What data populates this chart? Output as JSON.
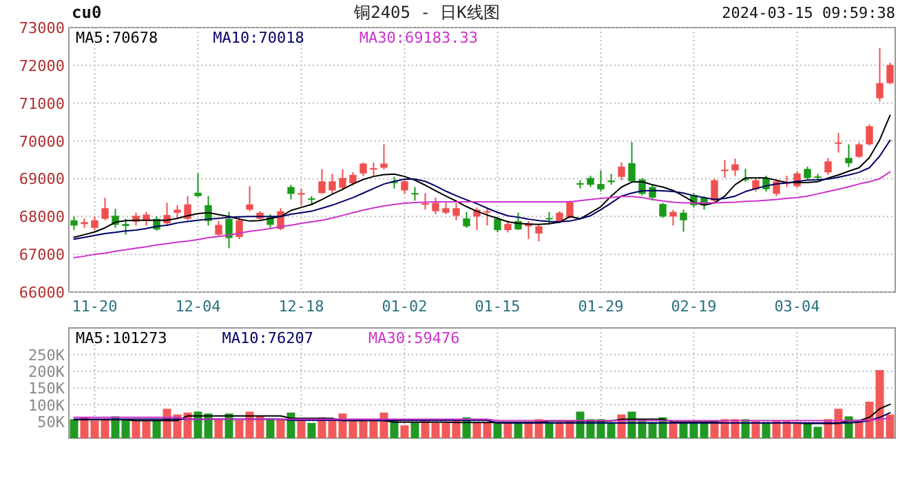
{
  "chart_data": [
    {
      "type": "candlestick",
      "title": "铜2405 - 日K线图",
      "annotations": [
        "cu0",
        "2024-03-15 09:59:38"
      ],
      "categories": [
        null,
        null,
        "11-20",
        null,
        null,
        null,
        null,
        null,
        null,
        null,
        null,
        null,
        "12-04",
        null,
        null,
        null,
        null,
        null,
        null,
        null,
        null,
        null,
        "12-18",
        null,
        null,
        null,
        null,
        null,
        null,
        null,
        null,
        null,
        "01-02",
        null,
        null,
        null,
        null,
        null,
        null,
        null,
        null,
        "01-15",
        null,
        null,
        null,
        null,
        null,
        null,
        null,
        null,
        null,
        "01-29",
        null,
        null,
        null,
        null,
        null,
        null,
        null,
        null,
        "02-19",
        null,
        null,
        null,
        null,
        null,
        null,
        null,
        null,
        null,
        "03-04",
        null,
        null,
        null,
        null,
        null,
        null,
        null,
        null,
        null
      ],
      "ohlc": [
        [
          67900,
          68000,
          67640,
          67760
        ],
        [
          67800,
          67950,
          67700,
          67850
        ],
        [
          67700,
          68000,
          67640,
          67900
        ],
        [
          67940,
          68500,
          67900,
          68220
        ],
        [
          68020,
          68200,
          67700,
          67780
        ],
        [
          67800,
          67940,
          67520,
          67750
        ],
        [
          67860,
          68100,
          67760,
          68020
        ],
        [
          67880,
          68120,
          67760,
          68050
        ],
        [
          67940,
          68000,
          67620,
          67660
        ],
        [
          67820,
          68360,
          67760,
          68040
        ],
        [
          68100,
          68300,
          67940,
          68180
        ],
        [
          67940,
          68540,
          67900,
          68320
        ],
        [
          68630,
          69140,
          68520,
          68540
        ],
        [
          68300,
          68540,
          67760,
          67880
        ],
        [
          67520,
          67880,
          67460,
          67780
        ],
        [
          67940,
          68120,
          67160,
          67430
        ],
        [
          67460,
          68000,
          67400,
          67900
        ],
        [
          68180,
          68800,
          68140,
          68320
        ],
        [
          67940,
          68140,
          67900,
          68100
        ],
        [
          67980,
          68060,
          67700,
          67780
        ],
        [
          67670,
          68220,
          67640,
          68140
        ],
        [
          68780,
          68840,
          68450,
          68600
        ],
        [
          68580,
          68740,
          68300,
          68620
        ],
        [
          68480,
          68540,
          68300,
          68450
        ],
        [
          68620,
          69250,
          68600,
          68930
        ],
        [
          68690,
          69130,
          68600,
          68930
        ],
        [
          68760,
          69250,
          68700,
          69020
        ],
        [
          68880,
          69170,
          68830,
          69100
        ],
        [
          69140,
          69430,
          69070,
          69400
        ],
        [
          69240,
          69430,
          69070,
          69280
        ],
        [
          69290,
          69910,
          69240,
          69400
        ],
        [
          68920,
          69050,
          68740,
          68900
        ],
        [
          68690,
          68980,
          68600,
          68930
        ],
        [
          68620,
          68780,
          68420,
          68600
        ],
        [
          68310,
          68620,
          68180,
          68350
        ],
        [
          68140,
          68500,
          68060,
          68360
        ],
        [
          68100,
          68360,
          68060,
          68220
        ],
        [
          68020,
          68360,
          67900,
          68220
        ],
        [
          67950,
          68120,
          67700,
          67740
        ],
        [
          68000,
          68240,
          67640,
          68180
        ],
        [
          68120,
          68240,
          67760,
          68140
        ],
        [
          67940,
          68000,
          67580,
          67640
        ],
        [
          67640,
          67900,
          67580,
          67800
        ],
        [
          67880,
          68100,
          67640,
          67660
        ],
        [
          67740,
          67880,
          67400,
          67820
        ],
        [
          67550,
          67790,
          67340,
          67740
        ],
        [
          67960,
          68120,
          67790,
          67940
        ],
        [
          67860,
          68140,
          67820,
          68100
        ],
        [
          67980,
          68420,
          67940,
          68380
        ],
        [
          68880,
          68960,
          68740,
          68860
        ],
        [
          69020,
          69080,
          68780,
          68840
        ],
        [
          68860,
          69220,
          68660,
          68720
        ],
        [
          68950,
          69130,
          68840,
          68910
        ],
        [
          69050,
          69430,
          68960,
          69320
        ],
        [
          69410,
          69970,
          68900,
          68930
        ],
        [
          68980,
          69020,
          68560,
          68600
        ],
        [
          68780,
          68840,
          68420,
          68500
        ],
        [
          68330,
          68360,
          67960,
          68000
        ],
        [
          68000,
          68180,
          67760,
          68120
        ],
        [
          68100,
          68180,
          67600,
          67900
        ],
        [
          68570,
          68620,
          68240,
          68300
        ],
        [
          68500,
          68540,
          68180,
          68300
        ],
        [
          68420,
          69000,
          68380,
          68960
        ],
        [
          69200,
          69500,
          69020,
          69240
        ],
        [
          69220,
          69530,
          69070,
          69380
        ],
        [
          69000,
          69260,
          68920,
          68980
        ],
        [
          68720,
          69000,
          68660,
          68960
        ],
        [
          69020,
          69080,
          68660,
          68720
        ],
        [
          68600,
          68980,
          68540,
          68930
        ],
        [
          68870,
          69080,
          68780,
          68900
        ],
        [
          68800,
          69200,
          68760,
          69140
        ],
        [
          69260,
          69320,
          68960,
          69020
        ],
        [
          69060,
          69130,
          68960,
          69050
        ],
        [
          69170,
          69550,
          69100,
          69460
        ],
        [
          69930,
          70210,
          69690,
          69960
        ],
        [
          69550,
          69910,
          69310,
          69410
        ],
        [
          69580,
          69960,
          69550,
          69910
        ],
        [
          69910,
          70440,
          69880,
          70390
        ],
        [
          71130,
          72460,
          71050,
          71530
        ],
        [
          71530,
          72070,
          71500,
          72010
        ]
      ],
      "colors": [
        "#1a9a1a",
        "#f04f4f",
        "#f04f4f",
        "#f04f4f",
        "#1a9a1a",
        "#1a9a1a",
        "#f04f4f",
        "#f04f4f",
        "#1a9a1a",
        "#f04f4f",
        "#f04f4f",
        "#f04f4f",
        "#1a9a1a",
        "#1a9a1a",
        "#f04f4f",
        "#1a9a1a",
        "#f04f4f",
        "#f04f4f",
        "#f04f4f",
        "#1a9a1a",
        "#f04f4f",
        "#1a9a1a",
        "#f04f4f",
        "#1a9a1a",
        "#f04f4f",
        "#f04f4f",
        "#f04f4f",
        "#f04f4f",
        "#f04f4f",
        "#f04f4f",
        "#f04f4f",
        "#1a9a1a",
        "#f04f4f",
        "#1a9a1a",
        "#f04f4f",
        "#f04f4f",
        "#f04f4f",
        "#f04f4f",
        "#1a9a1a",
        "#f04f4f",
        "#f04f4f",
        "#1a9a1a",
        "#f04f4f",
        "#1a9a1a",
        "#f04f4f",
        "#f04f4f",
        "#1a9a1a",
        "#f04f4f",
        "#f04f4f",
        "#1a9a1a",
        "#1a9a1a",
        "#1a9a1a",
        "#1a9a1a",
        "#f04f4f",
        "#1a9a1a",
        "#1a9a1a",
        "#1a9a1a",
        "#1a9a1a",
        "#f04f4f",
        "#1a9a1a",
        "#1a9a1a",
        "#1a9a1a",
        "#f04f4f",
        "#f04f4f",
        "#f04f4f",
        "#1a9a1a",
        "#f04f4f",
        "#1a9a1a",
        "#f04f4f",
        "#f04f4f",
        "#f04f4f",
        "#1a9a1a",
        "#1a9a1a",
        "#f04f4f",
        "#f04f4f",
        "#1a9a1a",
        "#f04f4f",
        "#f04f4f",
        "#f04f4f",
        "#f04f4f"
      ],
      "ylim": [
        66000,
        73000
      ],
      "yticks": [
        66000,
        67000,
        68000,
        69000,
        70000,
        71000,
        72000,
        73000
      ],
      "grid": true,
      "legend": "top left",
      "series": [
        {
          "name": "MA5:70678",
          "type": "line",
          "color": "#000000",
          "values": [
            67450,
            67520,
            67590,
            67700,
            67850,
            67890,
            67900,
            67900,
            67900,
            67900,
            67950,
            68020,
            68080,
            68100,
            68050,
            68000,
            67930,
            67880,
            67890,
            67950,
            68000,
            68160,
            68240,
            68320,
            68450,
            68590,
            68720,
            68860,
            68980,
            69060,
            69110,
            69120,
            69060,
            68960,
            68830,
            68680,
            68540,
            68410,
            68260,
            68140,
            68040,
            67950,
            67860,
            67820,
            67800,
            67790,
            67810,
            67850,
            68000,
            67940,
            68100,
            68260,
            68540,
            68780,
            68910,
            68920,
            68840,
            68780,
            68690,
            68540,
            68380,
            68300,
            68360,
            68540,
            68840,
            69020,
            69020,
            69020,
            68960,
            68900,
            68900,
            68900,
            68920,
            69020,
            69100,
            69200,
            69290,
            69560,
            70030,
            70678
          ]
        },
        {
          "name": "MA10:70018",
          "type": "line",
          "color": "#000066",
          "values": [
            67400,
            67450,
            67500,
            67550,
            67580,
            67620,
            67640,
            67680,
            67740,
            67770,
            67830,
            67870,
            67900,
            67930,
            67950,
            67980,
            67990,
            68000,
            68000,
            68000,
            68000,
            68060,
            68100,
            68140,
            68220,
            68300,
            68400,
            68500,
            68620,
            68740,
            68860,
            68930,
            68990,
            68990,
            68930,
            68810,
            68670,
            68550,
            68440,
            68340,
            68220,
            68110,
            68020,
            67980,
            67930,
            67890,
            67870,
            67860,
            67880,
            67940,
            68020,
            68180,
            68360,
            68540,
            68620,
            68680,
            68690,
            68680,
            68660,
            68620,
            68550,
            68500,
            68450,
            68480,
            68540,
            68660,
            68740,
            68810,
            68860,
            68890,
            68930,
            68960,
            68970,
            68990,
            69040,
            69100,
            69170,
            69290,
            69600,
            70018
          ]
        },
        {
          "name": "MA30:69183.33",
          "type": "line",
          "color": "#cc33cc",
          "values": [
            66910,
            66950,
            67000,
            67030,
            67080,
            67120,
            67160,
            67200,
            67250,
            67280,
            67320,
            67350,
            67390,
            67440,
            67470,
            67510,
            67560,
            67610,
            67640,
            67680,
            67730,
            67770,
            67820,
            67860,
            67900,
            67960,
            68030,
            68100,
            68170,
            68230,
            68280,
            68320,
            68350,
            68370,
            68380,
            68390,
            68390,
            68390,
            68390,
            68390,
            68390,
            68390,
            68390,
            68390,
            68390,
            68390,
            68390,
            68390,
            68390,
            68420,
            68450,
            68480,
            68500,
            68530,
            68530,
            68500,
            68450,
            68410,
            68380,
            68360,
            68360,
            68360,
            68360,
            68370,
            68380,
            68400,
            68410,
            68430,
            68450,
            68480,
            68500,
            68540,
            68600,
            68660,
            68720,
            68790,
            68860,
            68920,
            69000,
            69183.33
          ]
        }
      ]
    },
    {
      "type": "bar",
      "tick_labels": "y",
      "categories": [
        null,
        null,
        null,
        null,
        null,
        null,
        null,
        null,
        null,
        null,
        null,
        null,
        null,
        null,
        null,
        null,
        null,
        null,
        null,
        null,
        null,
        null,
        null,
        null,
        null,
        null,
        null,
        null,
        null,
        null,
        null,
        null,
        null,
        null,
        null,
        null,
        null,
        null,
        null,
        null,
        null,
        null,
        null,
        null,
        null,
        null,
        null,
        null,
        null,
        null,
        null,
        null,
        null,
        null,
        null,
        null,
        null,
        null,
        null,
        null,
        null,
        null,
        null,
        null,
        null,
        null,
        null,
        null,
        null,
        null,
        null,
        null,
        null,
        null,
        null,
        null,
        null,
        null,
        null,
        null
      ],
      "values": [
        56700,
        62300,
        52400,
        56700,
        65200,
        56700,
        52400,
        52400,
        52400,
        87900,
        70900,
        76500,
        79400,
        73700,
        56700,
        73700,
        53800,
        79400,
        66600,
        59500,
        56700,
        76500,
        56700,
        45300,
        62300,
        56700,
        73700,
        56700,
        53800,
        53800,
        76500,
        53800,
        38300,
        48200,
        51000,
        45300,
        45300,
        52400,
        62300,
        45300,
        48200,
        48200,
        45300,
        45300,
        48200,
        56700,
        48200,
        48200,
        51000,
        79400,
        56700,
        56700,
        45300,
        70900,
        79400,
        56700,
        48200,
        62300,
        48200,
        48200,
        45300,
        45300,
        51000,
        56700,
        56700,
        56700,
        51000,
        48200,
        53800,
        51000,
        48200,
        45300,
        34000,
        56700,
        87900,
        65200,
        51000,
        109100,
        204000,
        70900
      ],
      "colors": [
        "#229922",
        "#f25a5a",
        "#f25a5a",
        "#f25a5a",
        "#229922",
        "#229922",
        "#f25a5a",
        "#f25a5a",
        "#229922",
        "#f25a5a",
        "#f25a5a",
        "#f25a5a",
        "#229922",
        "#229922",
        "#f25a5a",
        "#229922",
        "#f25a5a",
        "#f25a5a",
        "#f25a5a",
        "#229922",
        "#f25a5a",
        "#229922",
        "#f25a5a",
        "#229922",
        "#f25a5a",
        "#f25a5a",
        "#f25a5a",
        "#f25a5a",
        "#f25a5a",
        "#f25a5a",
        "#f25a5a",
        "#229922",
        "#f25a5a",
        "#229922",
        "#f25a5a",
        "#f25a5a",
        "#f25a5a",
        "#f25a5a",
        "#229922",
        "#f25a5a",
        "#f25a5a",
        "#229922",
        "#f25a5a",
        "#229922",
        "#f25a5a",
        "#f25a5a",
        "#229922",
        "#f25a5a",
        "#f25a5a",
        "#229922",
        "#229922",
        "#229922",
        "#229922",
        "#f25a5a",
        "#229922",
        "#229922",
        "#229922",
        "#229922",
        "#f25a5a",
        "#229922",
        "#229922",
        "#229922",
        "#f25a5a",
        "#f25a5a",
        "#f25a5a",
        "#229922",
        "#f25a5a",
        "#229922",
        "#f25a5a",
        "#f25a5a",
        "#f25a5a",
        "#229922",
        "#229922",
        "#f25a5a",
        "#f25a5a",
        "#229922",
        "#f25a5a",
        "#f25a5a",
        "#f25a5a",
        "#f25a5a"
      ],
      "ylim": [
        0,
        330000
      ],
      "yticks": [
        {
          "value": 50000,
          "label": "50K"
        },
        {
          "value": 100000,
          "label": "100K"
        },
        {
          "value": 150000,
          "label": "150K"
        },
        {
          "value": 200000,
          "label": "200K"
        },
        {
          "value": 250000,
          "label": "250K"
        }
      ],
      "grid": true,
      "legend": "top left",
      "series": [
        {
          "name": "MA5:101273",
          "type": "line",
          "color": "#000000",
          "values": [
            55300,
            55300,
            55300,
            55300,
            55300,
            55300,
            52400,
            52400,
            52400,
            52400,
            52400,
            66600,
            66600,
            66600,
            66600,
            66600,
            66600,
            66600,
            66600,
            66600,
            66600,
            59500,
            59500,
            59500,
            59500,
            59500,
            52400,
            52400,
            52400,
            52400,
            52400,
            48200,
            48200,
            48200,
            48200,
            48200,
            48200,
            46800,
            46800,
            46800,
            46800,
            46800,
            46800,
            46800,
            46800,
            46800,
            51000,
            51000,
            51000,
            51000,
            51000,
            51000,
            51000,
            56700,
            56700,
            56700,
            56700,
            56700,
            48200,
            48200,
            48200,
            48200,
            48200,
            45300,
            45300,
            45300,
            45300,
            45300,
            45300,
            45300,
            45300,
            43900,
            43900,
            43900,
            43900,
            52400,
            52400,
            62300,
            87900,
            101273
          ]
        },
        {
          "name": "MA10:76207",
          "type": "line",
          "color": "#000066",
          "values": [
            56700,
            56700,
            56700,
            56700,
            56700,
            56700,
            56700,
            56700,
            56700,
            56700,
            56700,
            56700,
            56700,
            56700,
            56700,
            56700,
            56700,
            56700,
            56700,
            56700,
            56700,
            53800,
            53800,
            53800,
            53800,
            53800,
            53800,
            53800,
            53800,
            53800,
            53800,
            53800,
            53800,
            53800,
            53800,
            53800,
            53800,
            53800,
            53800,
            53800,
            53800,
            45300,
            45300,
            45300,
            45300,
            45300,
            45300,
            45300,
            45300,
            45300,
            45300,
            45300,
            45300,
            45300,
            45300,
            45300,
            45300,
            45300,
            45300,
            45300,
            45300,
            45300,
            45300,
            45300,
            45300,
            45300,
            45300,
            45300,
            45300,
            45300,
            45300,
            45300,
            45300,
            45300,
            45300,
            45300,
            48200,
            52400,
            62300,
            76207
          ]
        },
        {
          "name": "MA30:59476",
          "type": "line",
          "color": "#cc33cc",
          "values": [
            62300,
            62300,
            62300,
            62300,
            62300,
            62300,
            62300,
            62300,
            62300,
            62300,
            62300,
            56700,
            56700,
            56700,
            56700,
            56700,
            56700,
            56700,
            56700,
            56700,
            56700,
            56700,
            56700,
            56700,
            56700,
            56700,
            56700,
            56700,
            56700,
            56700,
            56700,
            56700,
            56700,
            56700,
            56700,
            56700,
            56700,
            56700,
            56700,
            56700,
            56700,
            52400,
            52400,
            52400,
            52400,
            52400,
            52400,
            52400,
            52400,
            52400,
            52400,
            52400,
            52400,
            52400,
            52400,
            52400,
            52400,
            52400,
            52400,
            52400,
            52400,
            52400,
            52400,
            52400,
            52400,
            52400,
            52400,
            52400,
            52400,
            52400,
            52400,
            52400,
            52400,
            52400,
            52400,
            52400,
            52400,
            53800,
            56700,
            59476
          ]
        }
      ]
    }
  ]
}
